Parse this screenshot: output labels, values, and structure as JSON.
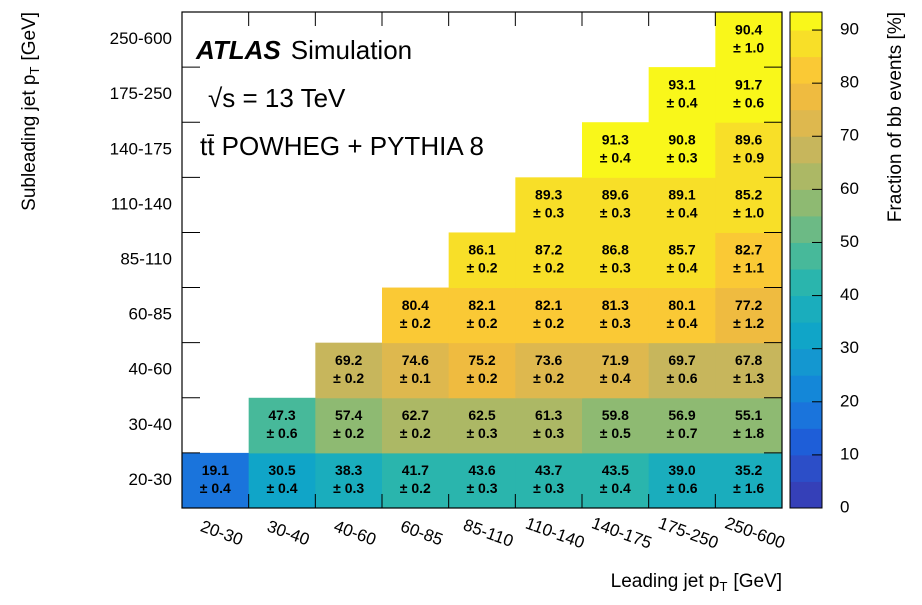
{
  "chart_data": {
    "type": "heatmap",
    "x_categories": [
      "20-30",
      "30-40",
      "40-60",
      "60-85",
      "85-110",
      "110-140",
      "140-175",
      "175-250",
      "250-600"
    ],
    "y_categories": [
      "20-30",
      "30-40",
      "40-60",
      "60-85",
      "85-110",
      "110-140",
      "140-175",
      "175-250",
      "250-600"
    ],
    "values": [
      [
        19.1,
        30.5,
        38.3,
        41.7,
        43.6,
        43.7,
        43.5,
        39.0,
        35.2
      ],
      [
        null,
        47.3,
        57.4,
        62.7,
        62.5,
        61.3,
        59.8,
        56.9,
        55.1
      ],
      [
        null,
        null,
        69.2,
        74.6,
        75.2,
        73.6,
        71.9,
        69.7,
        67.8
      ],
      [
        null,
        null,
        null,
        80.4,
        82.1,
        82.1,
        81.3,
        80.1,
        77.2
      ],
      [
        null,
        null,
        null,
        null,
        86.1,
        87.2,
        86.8,
        85.7,
        82.7
      ],
      [
        null,
        null,
        null,
        null,
        null,
        89.3,
        89.6,
        89.1,
        85.2
      ],
      [
        null,
        null,
        null,
        null,
        null,
        null,
        91.3,
        90.8,
        89.6
      ],
      [
        null,
        null,
        null,
        null,
        null,
        null,
        null,
        93.1,
        91.7
      ],
      [
        null,
        null,
        null,
        null,
        null,
        null,
        null,
        null,
        90.4
      ]
    ],
    "value_labels": [
      [
        "19.1",
        "30.5",
        "38.3",
        "41.7",
        "43.6",
        "43.7",
        "43.5",
        "39.0",
        "35.2"
      ],
      [
        null,
        "47.3",
        "57.4",
        "62.7",
        "62.5",
        "61.3",
        "59.8",
        "56.9",
        "55.1"
      ],
      [
        null,
        null,
        "69.2",
        "74.6",
        "75.2",
        "73.6",
        "71.9",
        "69.7",
        "67.8"
      ],
      [
        null,
        null,
        null,
        "80.4",
        "82.1",
        "82.1",
        "81.3",
        "80.1",
        "77.2"
      ],
      [
        null,
        null,
        null,
        null,
        "86.1",
        "87.2",
        "86.8",
        "85.7",
        "82.7"
      ],
      [
        null,
        null,
        null,
        null,
        null,
        "89.3",
        "89.6",
        "89.1",
        "85.2"
      ],
      [
        null,
        null,
        null,
        null,
        null,
        null,
        "91.3",
        "90.8",
        "89.6"
      ],
      [
        null,
        null,
        null,
        null,
        null,
        null,
        null,
        "93.1",
        "91.7"
      ],
      [
        null,
        null,
        null,
        null,
        null,
        null,
        null,
        null,
        "90.4"
      ]
    ],
    "errors": [
      [
        0.4,
        0.4,
        0.3,
        0.2,
        0.3,
        0.3,
        0.4,
        0.6,
        1.6
      ],
      [
        null,
        0.6,
        0.2,
        0.2,
        0.3,
        0.3,
        0.5,
        0.7,
        1.8
      ],
      [
        null,
        null,
        0.2,
        0.1,
        0.2,
        0.2,
        0.4,
        0.6,
        1.3
      ],
      [
        null,
        null,
        null,
        0.2,
        0.2,
        0.2,
        0.3,
        0.4,
        1.2
      ],
      [
        null,
        null,
        null,
        null,
        0.2,
        0.2,
        0.3,
        0.4,
        1.1
      ],
      [
        null,
        null,
        null,
        null,
        null,
        0.3,
        0.3,
        0.4,
        1.0
      ],
      [
        null,
        null,
        null,
        null,
        null,
        null,
        0.4,
        0.3,
        0.9
      ],
      [
        null,
        null,
        null,
        null,
        null,
        null,
        null,
        0.4,
        0.6
      ],
      [
        null,
        null,
        null,
        null,
        null,
        null,
        null,
        null,
        1.0
      ]
    ],
    "error_labels": [
      [
        "± 0.4",
        "± 0.4",
        "± 0.3",
        "± 0.2",
        "± 0.3",
        "± 0.3",
        "± 0.4",
        "± 0.6",
        "± 1.6"
      ],
      [
        null,
        "± 0.6",
        "± 0.2",
        "± 0.2",
        "± 0.3",
        "± 0.3",
        "± 0.5",
        "± 0.7",
        "± 1.8"
      ],
      [
        null,
        null,
        "± 0.2",
        "± 0.1",
        "± 0.2",
        "± 0.2",
        "± 0.4",
        "± 0.6",
        "± 1.3"
      ],
      [
        null,
        null,
        null,
        "± 0.2",
        "± 0.2",
        "± 0.2",
        "± 0.3",
        "± 0.4",
        "± 1.2"
      ],
      [
        null,
        null,
        null,
        null,
        "± 0.2",
        "± 0.2",
        "± 0.3",
        "± 0.4",
        "± 1.1"
      ],
      [
        null,
        null,
        null,
        null,
        null,
        "± 0.3",
        "± 0.3",
        "± 0.4",
        "± 1.0"
      ],
      [
        null,
        null,
        null,
        null,
        null,
        null,
        "± 0.4",
        "± 0.3",
        "± 0.9"
      ],
      [
        null,
        null,
        null,
        null,
        null,
        null,
        null,
        "± 0.4",
        "± 0.6"
      ],
      [
        null,
        null,
        null,
        null,
        null,
        null,
        null,
        null,
        "± 1.0"
      ]
    ],
    "xlabel": {
      "text": "Leading jet p",
      "sub": "T",
      "unit": "[GeV]"
    },
    "ylabel": {
      "text": "Subleading jet p",
      "sub": "T",
      "unit": "[GeV]"
    },
    "colorbar": {
      "label": "Fraction of bb events [%]",
      "lim": [
        0,
        93.4
      ],
      "ticks": [
        0,
        10,
        20,
        30,
        40,
        50,
        60,
        70,
        80,
        90
      ]
    },
    "colormap_step": 5,
    "colormap": [
      "#3540b8",
      "#2c4ec8",
      "#1e5ed8",
      "#1a74dc",
      "#1487d8",
      "#1497d0",
      "#10a5c8",
      "#1aadbd",
      "#2ab5ad",
      "#47b99a",
      "#6cba85",
      "#8eba72",
      "#acb865",
      "#c7b65c",
      "#deb84e",
      "#efbb40",
      "#fac935",
      "#f8df28",
      "#f9f71a"
    ],
    "annotations": {
      "experiment": "ATLAS",
      "status": "Simulation",
      "energy": "√s = 13 TeV",
      "sample": "tt̄ POWHEG + PYTHIA 8"
    }
  }
}
